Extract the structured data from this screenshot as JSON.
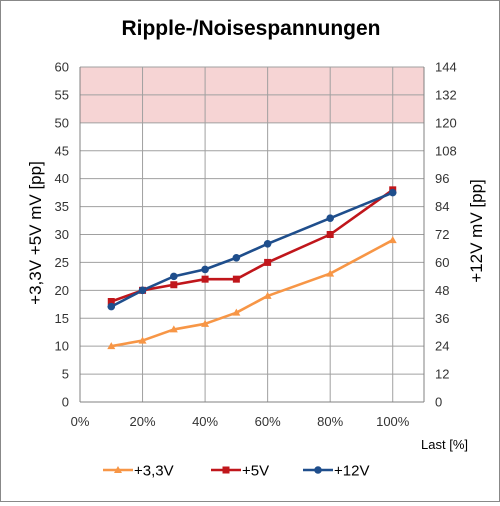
{
  "chart_data": {
    "type": "line",
    "title": "Ripple-/Noisespannungen",
    "xlabel": "Last [%]",
    "ylabel_left": "+3,3V +5V   mV [pp]",
    "ylabel_right": "+12V   mV [pp]",
    "xlim": [
      0,
      110
    ],
    "x_ticks": [
      "0%",
      "20%",
      "40%",
      "60%",
      "80%",
      "100%"
    ],
    "x_tick_values": [
      0,
      20,
      40,
      60,
      80,
      100
    ],
    "ylim_left": [
      0,
      60
    ],
    "y_ticks_left": [
      "0",
      "5",
      "10",
      "15",
      "20",
      "25",
      "30",
      "35",
      "40",
      "45",
      "50",
      "55",
      "60"
    ],
    "ylim_right": [
      0,
      144
    ],
    "y_ticks_right": [
      "0",
      "12",
      "24",
      "36",
      "48",
      "60",
      "72",
      "84",
      "96",
      "108",
      "120",
      "132",
      "144"
    ],
    "limit_band_left": [
      50,
      60
    ],
    "limit_band_color": "#f6d4d4",
    "grid": true,
    "legend_position": "bottom",
    "x": [
      10,
      20,
      30,
      40,
      50,
      60,
      80,
      100
    ],
    "series": [
      {
        "name": "+3,3V",
        "axis": "left",
        "color": "#f79646",
        "marker": "triangle",
        "values": [
          10,
          11,
          13,
          14,
          16,
          19,
          23,
          29
        ]
      },
      {
        "name": "+5V",
        "axis": "left",
        "color": "#c0161b",
        "marker": "square",
        "values": [
          18,
          20,
          21,
          22,
          22,
          25,
          30,
          38
        ]
      },
      {
        "name": "+12V",
        "axis": "right",
        "color": "#1f4e8c",
        "marker": "circle",
        "values": [
          41,
          48,
          54,
          57,
          62,
          68,
          79,
          90
        ]
      }
    ]
  }
}
